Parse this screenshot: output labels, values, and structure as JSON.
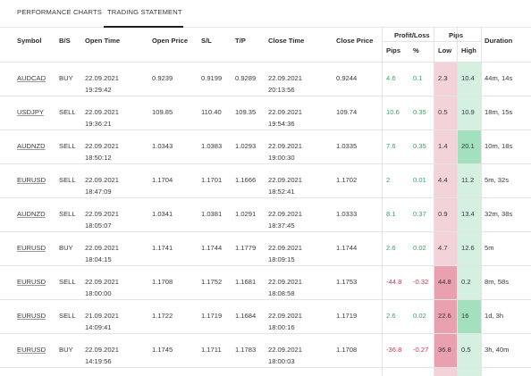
{
  "tabs": {
    "performance_label": "PERFORMANCE CHARTS",
    "statement_label": "TRADING STATEMENT"
  },
  "headers": {
    "symbol": "Symbol",
    "bs": "B/S",
    "open_time": "Open Time",
    "open_price": "Open Price",
    "sl": "S/L",
    "tp": "T/P",
    "close_time": "Close Time",
    "close_price": "Close Price",
    "profit_loss": "Profit/Loss",
    "pl_pips": "Pips",
    "pl_percent": "%",
    "pips": "Pips",
    "low": "Low",
    "high": "High",
    "duration": "Duration"
  },
  "colors": {
    "positive": "#2eab5e",
    "negative": "#d6324d",
    "low_light": "#f4d2d9",
    "low_strong": "#e9a1b0",
    "high_light": "#d3f0e0",
    "high_strong": "#a3e0bd"
  },
  "rows": [
    {
      "symbol": "AUDCAD",
      "bs": "BUY",
      "open_date": "22.09.2021",
      "open_time": "19:29:42",
      "open_price": "0.9239",
      "sl": "0.9199",
      "tp": "0.9289",
      "close_date": "22.09.2021",
      "close_time": "20:13:56",
      "close_price": "0.9244",
      "pips": "4.6",
      "percent": "0.1",
      "low": "2.3",
      "high": "10.4",
      "duration": "44m, 14s",
      "sign": "pos",
      "low_strong": false,
      "high_strong": false
    },
    {
      "symbol": "USDJPY",
      "bs": "SELL",
      "open_date": "22.09.2021",
      "open_time": "19:36:21",
      "open_price": "109.85",
      "sl": "110.40",
      "tp": "109.35",
      "close_date": "22.09.2021",
      "close_time": "19:54:36",
      "close_price": "109.74",
      "pips": "10.6",
      "percent": "0.35",
      "low": "0.5",
      "high": "10.9",
      "duration": "18m, 15s",
      "sign": "pos",
      "low_strong": false,
      "high_strong": false
    },
    {
      "symbol": "AUDNZD",
      "bs": "SELL",
      "open_date": "22.09.2021",
      "open_time": "18:50:12",
      "open_price": "1.0343",
      "sl": "1.0383",
      "tp": "1.0293",
      "close_date": "22.09.2021",
      "close_time": "19:00:30",
      "close_price": "1.0335",
      "pips": "7.6",
      "percent": "0.35",
      "low": "1.4",
      "high": "20.1",
      "duration": "10m, 18s",
      "sign": "pos",
      "low_strong": false,
      "high_strong": true
    },
    {
      "symbol": "EURUSD",
      "bs": "SELL",
      "open_date": "22.09.2021",
      "open_time": "18:47:09",
      "open_price": "1.1704",
      "sl": "1.1701",
      "tp": "1.1666",
      "close_date": "22.09.2021",
      "close_time": "18:52:41",
      "close_price": "1.1702",
      "pips": "2",
      "percent": "0.01",
      "low": "4.4",
      "high": "11.2",
      "duration": "5m, 32s",
      "sign": "pos",
      "low_strong": false,
      "high_strong": false
    },
    {
      "symbol": "AUDNZD",
      "bs": "SELL",
      "open_date": "22.09.2021",
      "open_time": "18:05:07",
      "open_price": "1.0341",
      "sl": "1.0381",
      "tp": "1.0291",
      "close_date": "22.09.2021",
      "close_time": "18:37:45",
      "close_price": "1.0333",
      "pips": "8.1",
      "percent": "0.37",
      "low": "0.9",
      "high": "13.4",
      "duration": "32m, 38s",
      "sign": "pos",
      "low_strong": false,
      "high_strong": false
    },
    {
      "symbol": "EURUSD",
      "bs": "BUY",
      "open_date": "22.09.2021",
      "open_time": "18:04:15",
      "open_price": "1.1741",
      "sl": "1.1744",
      "tp": "1.1779",
      "close_date": "22.09.2021",
      "close_time": "18:09:15",
      "close_price": "1.1744",
      "pips": "2.6",
      "percent": "0.02",
      "low": "4.7",
      "high": "12.6",
      "duration": "5m",
      "sign": "pos",
      "low_strong": false,
      "high_strong": false
    },
    {
      "symbol": "EURUSD",
      "bs": "SELL",
      "open_date": "22.09.2021",
      "open_time": "18:00:00",
      "open_price": "1.1708",
      "sl": "1.1752",
      "tp": "1.1681",
      "close_date": "22.09.2021",
      "close_time": "18:08:58",
      "close_price": "1.1753",
      "pips": "-44.8",
      "percent": "-0.32",
      "low": "44.8",
      "high": "0.2",
      "duration": "8m, 58s",
      "sign": "neg",
      "low_strong": true,
      "high_strong": false
    },
    {
      "symbol": "EURUSD",
      "bs": "SELL",
      "open_date": "21.09.2021",
      "open_time": "14:09:41",
      "open_price": "1.1722",
      "sl": "1.1719",
      "tp": "1.1684",
      "close_date": "22.09.2021",
      "close_time": "18:00:16",
      "close_price": "1.1719",
      "pips": "2.6",
      "percent": "0.02",
      "low": "22.6",
      "high": "16",
      "duration": "1d, 3h",
      "sign": "pos",
      "low_strong": true,
      "high_strong": true
    },
    {
      "symbol": "EURUSD",
      "bs": "BUY",
      "open_date": "22.09.2021",
      "open_time": "14:19:56",
      "open_price": "1.1745",
      "sl": "1.1711",
      "tp": "1.1783",
      "close_date": "22.09.2021",
      "close_time": "18:00:03",
      "close_price": "1.1708",
      "pips": "-36.8",
      "percent": "-0.27",
      "low": "36.8",
      "high": "0.5",
      "duration": "3h, 40m",
      "sign": "neg",
      "low_strong": true,
      "high_strong": false
    }
  ]
}
